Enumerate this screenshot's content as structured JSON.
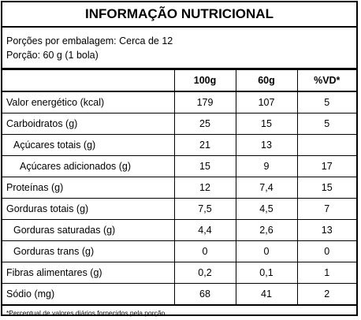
{
  "title": "INFORMAÇÃO NUTRICIONAL",
  "serving": {
    "portions": "Porções por embalagem: Cerca de 12",
    "portion": "Porção: 60 g (1 bola)"
  },
  "columns": [
    "",
    "100g",
    "60g",
    "%VD*"
  ],
  "rows": [
    {
      "label": "Valor energético (kcal)",
      "indent": 0,
      "v100": "179",
      "v60": "107",
      "vd": "5"
    },
    {
      "label": "Carboidratos (g)",
      "indent": 0,
      "v100": "25",
      "v60": "15",
      "vd": "5"
    },
    {
      "label": "Açúcares totais (g)",
      "indent": 1,
      "v100": "21",
      "v60": "13",
      "vd": ""
    },
    {
      "label": "Açúcares adicionados (g)",
      "indent": 2,
      "v100": "15",
      "v60": "9",
      "vd": "17"
    },
    {
      "label": "Proteínas (g)",
      "indent": 0,
      "v100": "12",
      "v60": "7,4",
      "vd": "15"
    },
    {
      "label": "Gorduras totais (g)",
      "indent": 0,
      "v100": "7,5",
      "v60": "4,5",
      "vd": "7"
    },
    {
      "label": "Gorduras saturadas (g)",
      "indent": 1,
      "v100": "4,4",
      "v60": "2,6",
      "vd": "13"
    },
    {
      "label": "Gorduras trans (g)",
      "indent": 1,
      "v100": "0",
      "v60": "0",
      "vd": "0"
    },
    {
      "label": "Fibras alimentares (g)",
      "indent": 0,
      "v100": "0,2",
      "v60": "0,1",
      "vd": "1"
    },
    {
      "label": "Sódio (mg)",
      "indent": 0,
      "v100": "68",
      "v60": "41",
      "vd": "2"
    }
  ],
  "footnote": "*Percentual de valores diários fornecidos pela porção."
}
